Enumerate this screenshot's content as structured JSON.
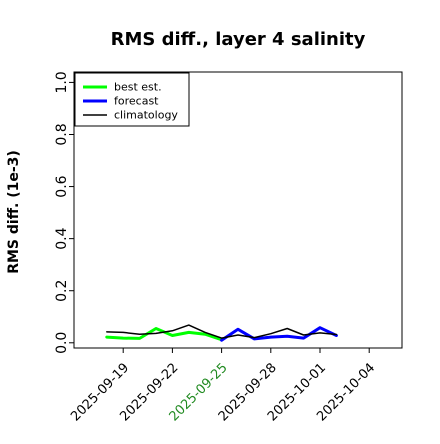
{
  "chart_data": {
    "type": "line",
    "title": "RMS diff., layer 4 salinity",
    "xlabel": "",
    "ylabel": "RMS diff. (1e-3)",
    "ylim": [
      -0.02,
      1.04
    ],
    "xlim": [
      "2025-09-16",
      "2025-10-06"
    ],
    "grid": false,
    "legend_position": "top-left",
    "x_ticks": [
      "2025-09-19",
      "2025-09-22",
      "2025-09-25",
      "2025-09-28",
      "2025-10-01",
      "2025-10-04"
    ],
    "x_tick_colors": [
      "#000000",
      "#000000",
      "#228B22",
      "#000000",
      "#000000",
      "#000000"
    ],
    "y_ticks": [
      0.0,
      0.2,
      0.4,
      0.6,
      0.8,
      1.0
    ],
    "y_tick_labels": [
      "0.0",
      "0.2",
      "0.4",
      "0.6",
      "0.8",
      "1.0"
    ],
    "series": [
      {
        "name": "best est.",
        "color": "#00ff00",
        "width": 3,
        "points": [
          {
            "x": "2025-09-18",
            "y": 0.022
          },
          {
            "x": "2025-09-19",
            "y": 0.018
          },
          {
            "x": "2025-09-20",
            "y": 0.017
          },
          {
            "x": "2025-09-21",
            "y": 0.055
          },
          {
            "x": "2025-09-22",
            "y": 0.028
          },
          {
            "x": "2025-09-23",
            "y": 0.04
          },
          {
            "x": "2025-09-24",
            "y": 0.033
          },
          {
            "x": "2025-09-25",
            "y": 0.012
          }
        ]
      },
      {
        "name": "forecast",
        "color": "#0000ff",
        "width": 3,
        "points": [
          {
            "x": "2025-09-25",
            "y": 0.01
          },
          {
            "x": "2025-09-26",
            "y": 0.052
          },
          {
            "x": "2025-09-27",
            "y": 0.015
          },
          {
            "x": "2025-09-28",
            "y": 0.022
          },
          {
            "x": "2025-09-29",
            "y": 0.025
          },
          {
            "x": "2025-09-30",
            "y": 0.018
          },
          {
            "x": "2025-10-01",
            "y": 0.058
          },
          {
            "x": "2025-10-02",
            "y": 0.028
          }
        ]
      },
      {
        "name": "climatology",
        "color": "#000000",
        "width": 1.5,
        "points": [
          {
            "x": "2025-09-18",
            "y": 0.042
          },
          {
            "x": "2025-09-19",
            "y": 0.04
          },
          {
            "x": "2025-09-20",
            "y": 0.033
          },
          {
            "x": "2025-09-21",
            "y": 0.036
          },
          {
            "x": "2025-09-22",
            "y": 0.046
          },
          {
            "x": "2025-09-23",
            "y": 0.068
          },
          {
            "x": "2025-09-24",
            "y": 0.04
          },
          {
            "x": "2025-09-25",
            "y": 0.018
          },
          {
            "x": "2025-09-26",
            "y": 0.03
          },
          {
            "x": "2025-09-27",
            "y": 0.02
          },
          {
            "x": "2025-09-28",
            "y": 0.035
          },
          {
            "x": "2025-09-29",
            "y": 0.055
          },
          {
            "x": "2025-09-30",
            "y": 0.03
          },
          {
            "x": "2025-10-01",
            "y": 0.038
          },
          {
            "x": "2025-10-02",
            "y": 0.032
          }
        ]
      }
    ]
  }
}
